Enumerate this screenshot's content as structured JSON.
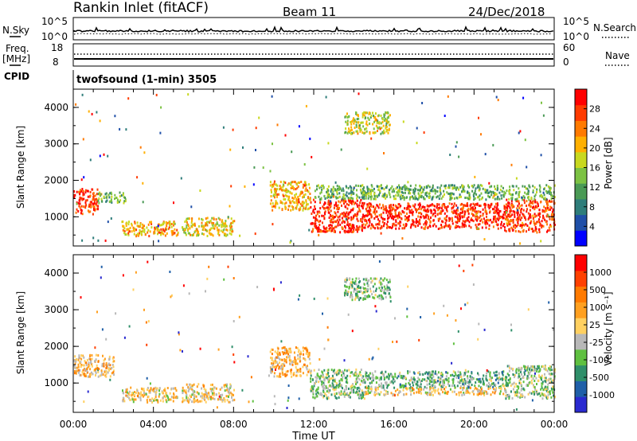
{
  "header": {
    "station": "Rankin Inlet (fitACF)",
    "beam": "Beam 11",
    "date": "24/Dec/2018"
  },
  "strips": {
    "nsky_label": "N.Sky",
    "nsky_ticks": [
      "10^5",
      "10^0"
    ],
    "nsearch_label": "N.Search",
    "freq_label": "Freq.",
    "freq_unit": "[MHz]",
    "freq_ticks": [
      "18",
      "8"
    ],
    "nave_label": "Nave",
    "nave_ticks": [
      "60",
      "0"
    ],
    "cpid_label": "CPID",
    "cpid_value": "twofsound (1-min) 3505"
  },
  "colors": {
    "power": [
      "#0000ff",
      "#1f4fa8",
      "#2e7d7a",
      "#4a9a55",
      "#7cc243",
      "#c8d81f",
      "#ffb000",
      "#ff7a00",
      "#ff3b00",
      "#ff0000"
    ],
    "velocity": [
      "#2a2ad0",
      "#1f5fa8",
      "#2f8f6a",
      "#5fc040",
      "#b8b8b8",
      "#ffd060",
      "#ffa020",
      "#ff7a00",
      "#ff4000",
      "#ff0000"
    ]
  },
  "chart_data": [
    {
      "type": "heatmap",
      "panel": "power",
      "ylabel": "Slant Range [km]",
      "xlabel": "",
      "x_ticks": [
        "00:00",
        "04:00",
        "08:00",
        "12:00",
        "16:00",
        "20:00",
        "00:00"
      ],
      "y_ticks": [
        "1000",
        "2000",
        "3000",
        "4000"
      ],
      "ylim": [
        200,
        4500
      ],
      "xlim_hours": [
        0,
        24
      ],
      "colorbar": {
        "label": "Power [dB]",
        "ticks": [
          "28",
          "24",
          "20",
          "16",
          "12",
          "8",
          "4"
        ],
        "range": [
          0,
          30
        ]
      },
      "regions": [
        {
          "t": [
            0.0,
            1.2
          ],
          "r": [
            1100,
            1800
          ],
          "v": 26
        },
        {
          "t": [
            1.2,
            2.6
          ],
          "r": [
            1400,
            1700
          ],
          "v": 13
        },
        {
          "t": [
            2.4,
            5.2
          ],
          "r": [
            500,
            900
          ],
          "v": 20
        },
        {
          "t": [
            5.4,
            8.0
          ],
          "r": [
            500,
            1000
          ],
          "v": 18
        },
        {
          "t": [
            9.8,
            11.8
          ],
          "r": [
            1200,
            2000
          ],
          "v": 20
        },
        {
          "t": [
            11.8,
            14.5
          ],
          "r": [
            600,
            1500
          ],
          "v": 27
        },
        {
          "t": [
            14.5,
            21.5
          ],
          "r": [
            700,
            1400
          ],
          "v": 27
        },
        {
          "t": [
            21.5,
            24.0
          ],
          "r": [
            600,
            1500
          ],
          "v": 26
        },
        {
          "t": [
            13.5,
            15.8
          ],
          "r": [
            3300,
            3900
          ],
          "v": 16
        },
        {
          "t": [
            12.0,
            24.0
          ],
          "r": [
            1500,
            1900
          ],
          "v": 12
        }
      ]
    },
    {
      "type": "heatmap",
      "panel": "velocity",
      "ylabel": "Slant Range [km]",
      "xlabel": "Time UT",
      "x_ticks": [
        "00:00",
        "04:00",
        "08:00",
        "12:00",
        "16:00",
        "20:00",
        "00:00"
      ],
      "y_ticks": [
        "1000",
        "2000",
        "3000",
        "4000"
      ],
      "ylim": [
        200,
        4500
      ],
      "xlim_hours": [
        0,
        24
      ],
      "colorbar": {
        "label": "Velocity [m s⁻¹]",
        "ticks": [
          "1000",
          "500",
          "100",
          "25",
          "-25",
          "-100",
          "-500",
          "-1000"
        ],
        "range": [
          -1000,
          1000
        ]
      },
      "regions": [
        {
          "t": [
            0.0,
            2.0
          ],
          "r": [
            1200,
            1800
          ],
          "v": 150
        },
        {
          "t": [
            2.4,
            5.2
          ],
          "r": [
            500,
            900
          ],
          "v": 80
        },
        {
          "t": [
            5.4,
            8.0
          ],
          "r": [
            500,
            1000
          ],
          "v": 60
        },
        {
          "t": [
            9.8,
            11.8
          ],
          "r": [
            1200,
            2000
          ],
          "v": 200
        },
        {
          "t": [
            11.8,
            14.5
          ],
          "r": [
            600,
            1400
          ],
          "v": -200
        },
        {
          "t": [
            14.5,
            21.5
          ],
          "r": [
            900,
            1350
          ],
          "v": -300
        },
        {
          "t": [
            14.5,
            21.5
          ],
          "r": [
            700,
            900
          ],
          "v": 100
        },
        {
          "t": [
            21.5,
            24.0
          ],
          "r": [
            600,
            1500
          ],
          "v": -200
        },
        {
          "t": [
            13.5,
            15.8
          ],
          "r": [
            3300,
            3900
          ],
          "v": -250
        }
      ]
    }
  ]
}
